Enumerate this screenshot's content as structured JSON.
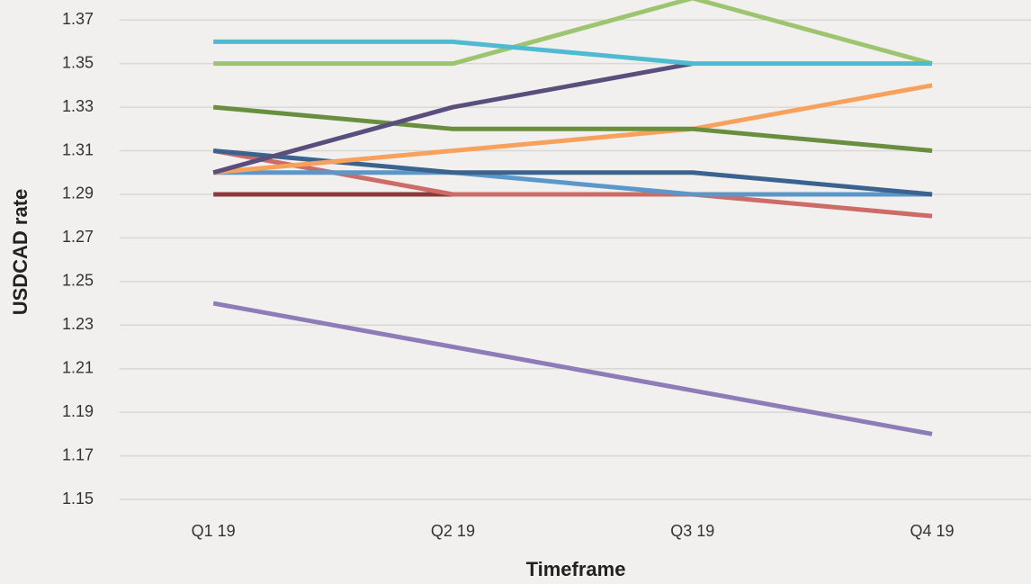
{
  "chart_data": {
    "type": "line",
    "y_label": "USDCAD rate",
    "x_label": "Timeframe",
    "categories": [
      "Q1 19",
      "Q2 19",
      "Q3 19",
      "Q4 19"
    ],
    "ylim": [
      1.15,
      1.38
    ],
    "yticks": [
      1.15,
      1.17,
      1.19,
      1.21,
      1.23,
      1.25,
      1.27,
      1.29,
      1.31,
      1.33,
      1.35,
      1.37
    ],
    "grid": true,
    "series": [
      {
        "color": "#8d7cb8",
        "values": [
          1.24,
          1.22,
          1.2,
          1.18
        ]
      },
      {
        "color": "#8b3a3a",
        "values": [
          1.29,
          1.29,
          1.29,
          1.29
        ]
      },
      {
        "color": "#cd6b66",
        "values": [
          1.31,
          1.29,
          1.29,
          1.28
        ]
      },
      {
        "color": "#5b97c9",
        "values": [
          1.3,
          1.3,
          1.29,
          1.29
        ]
      },
      {
        "color": "#3b6390",
        "values": [
          1.31,
          1.3,
          1.3,
          1.29
        ]
      },
      {
        "color": "#f8a15c",
        "values": [
          1.3,
          1.31,
          1.32,
          1.34
        ]
      },
      {
        "color": "#6a8e3f",
        "values": [
          1.33,
          1.32,
          1.32,
          1.31
        ]
      },
      {
        "color": "#5a4f7c",
        "values": [
          1.3,
          1.33,
          1.35,
          null
        ]
      },
      {
        "color": "#9dc56f",
        "values": [
          1.35,
          1.35,
          1.38,
          1.35
        ]
      },
      {
        "color": "#4fbbd0",
        "values": [
          1.36,
          1.36,
          1.35,
          1.35
        ]
      }
    ]
  }
}
